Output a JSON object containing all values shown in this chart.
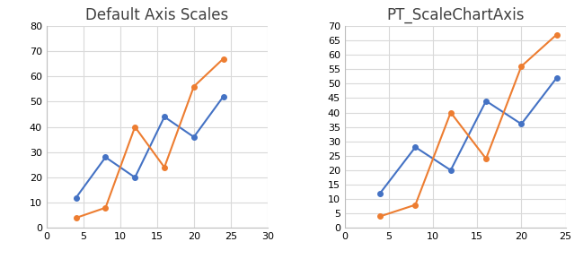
{
  "left_title": "Default Axis Scales",
  "right_title": "PT_ScaleChartAxis",
  "blue_x": [
    4,
    8,
    12,
    16,
    20,
    24
  ],
  "blue_y": [
    12,
    28,
    20,
    44,
    36,
    52
  ],
  "orange_x": [
    4,
    8,
    12,
    16,
    20,
    24
  ],
  "orange_y": [
    4,
    8,
    40,
    24,
    56,
    67
  ],
  "blue_color": "#4472C4",
  "orange_color": "#ED7D31",
  "left_xlim": [
    0,
    30
  ],
  "left_ylim": [
    0,
    80
  ],
  "left_xticks": [
    0,
    5,
    10,
    15,
    20,
    25,
    30
  ],
  "left_yticks": [
    0,
    10,
    20,
    30,
    40,
    50,
    60,
    70,
    80
  ],
  "right_xlim": [
    0,
    25
  ],
  "right_ylim": [
    0,
    70
  ],
  "right_xticks": [
    0,
    5,
    10,
    15,
    20,
    25
  ],
  "right_yticks": [
    0,
    5,
    10,
    15,
    20,
    25,
    30,
    35,
    40,
    45,
    50,
    55,
    60,
    65,
    70
  ],
  "marker": "o",
  "markersize": 4,
  "linewidth": 1.5,
  "bg_color": "#FFFFFF",
  "grid_color": "#D9D9D9",
  "title_fontsize": 12,
  "tick_fontsize": 8,
  "spine_color": "#BFBFBF"
}
